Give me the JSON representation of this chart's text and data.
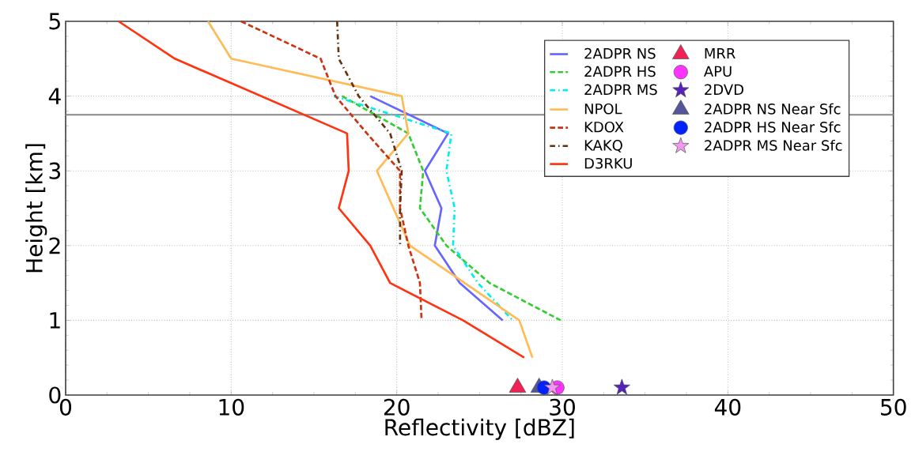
{
  "chart_data": {
    "type": "line",
    "xlabel": "Reflectivity [dBZ]",
    "ylabel": "Height [km]",
    "xlim": [
      0,
      50
    ],
    "ylim": [
      0,
      5
    ],
    "xticks": [
      0,
      10,
      20,
      30,
      40,
      50
    ],
    "yticks": [
      0,
      1,
      2,
      3,
      4,
      5
    ],
    "grid": true,
    "legend": "top right",
    "marker": "none",
    "ref_lines": [
      {
        "axis": "y",
        "value": 3.75,
        "color": "#888888",
        "line_style": "solid"
      }
    ],
    "series": [
      {
        "name": "2ADPR NS",
        "color": "#6666ff",
        "line_style": "solid",
        "x": [
          18.4,
          23.1,
          21.7,
          22.7,
          22.3,
          23.8,
          26.4
        ],
        "values": [
          4.0,
          3.5,
          3.0,
          2.5,
          2.0,
          1.5,
          1.0
        ]
      },
      {
        "name": "2ADPR HS",
        "color": "#33cc33",
        "line_style": "dashed",
        "x": [
          16.7,
          20.7,
          21.6,
          21.4,
          23.0,
          25.6,
          29.9
        ],
        "values": [
          4.0,
          3.5,
          3.0,
          2.5,
          2.0,
          1.5,
          1.0
        ]
      },
      {
        "name": "2ADPR MS",
        "color": "#00eeee",
        "line_style": "dotted",
        "x": [
          16.2,
          23.3,
          23.0,
          23.5,
          23.4,
          24.9,
          27.0
        ],
        "values": [
          4.0,
          3.5,
          3.0,
          2.5,
          2.0,
          1.5,
          1.0
        ]
      },
      {
        "name": "NPOL",
        "color": "#ffbb55",
        "line_style": "solid",
        "x": [
          8.6,
          10.0,
          20.3,
          20.7,
          18.8,
          20.8,
          27.4,
          28.2
        ],
        "values": [
          5.0,
          4.5,
          4.0,
          3.5,
          3.0,
          2.0,
          1.0,
          0.5
        ]
      },
      {
        "name": "KDOX",
        "color": "#cc3311",
        "line_style": "dashed",
        "x": [
          10.6,
          15.4,
          16.3,
          18.2,
          20.2,
          20.2,
          20.7,
          21.4,
          21.5
        ],
        "values": [
          5.0,
          4.5,
          4.0,
          3.5,
          3.0,
          2.5,
          2.0,
          1.5,
          1.0
        ]
      },
      {
        "name": "KAKQ",
        "color": "#663311",
        "line_style": "dotted",
        "x": [
          16.4,
          16.5,
          17.7,
          19.6,
          20.3,
          20.2,
          20.2
        ],
        "values": [
          5.0,
          4.5,
          4.0,
          3.5,
          3.0,
          2.5,
          2.0
        ]
      },
      {
        "name": "D3RKU",
        "color": "#ff3311",
        "line_style": "solid",
        "x": [
          3.2,
          6.6,
          17.0,
          17.1,
          16.5,
          18.4,
          19.6,
          24.0,
          27.7
        ],
        "values": [
          5.0,
          4.5,
          3.5,
          3.0,
          2.5,
          2.0,
          1.5,
          1.0,
          0.5
        ]
      },
      {
        "name": "MRR",
        "type": "scatter",
        "marker": "triangle",
        "color": "#ee2255",
        "x": [
          27.3
        ],
        "values": [
          0.1
        ]
      },
      {
        "name": "APU",
        "type": "scatter",
        "marker": "circle",
        "color": "#ff33ff",
        "x": [
          29.7
        ],
        "values": [
          0.1
        ]
      },
      {
        "name": "2DVD",
        "type": "scatter",
        "marker": "star",
        "color": "#5522bb",
        "x": [
          33.6
        ],
        "values": [
          0.1
        ]
      },
      {
        "name": "2ADPR NS Near Sfc",
        "type": "scatter",
        "marker": "triangle",
        "color": "#555599",
        "x": [
          28.6
        ],
        "values": [
          0.1
        ]
      },
      {
        "name": "2ADPR HS Near Sfc",
        "type": "scatter",
        "marker": "circle",
        "color": "#0022ff",
        "x": [
          28.9
        ],
        "values": [
          0.1
        ]
      },
      {
        "name": "2ADPR MS Near Sfc",
        "type": "scatter",
        "marker": "star",
        "color": "#ee99ee",
        "x": [
          29.4
        ],
        "values": [
          0.1
        ]
      }
    ]
  }
}
